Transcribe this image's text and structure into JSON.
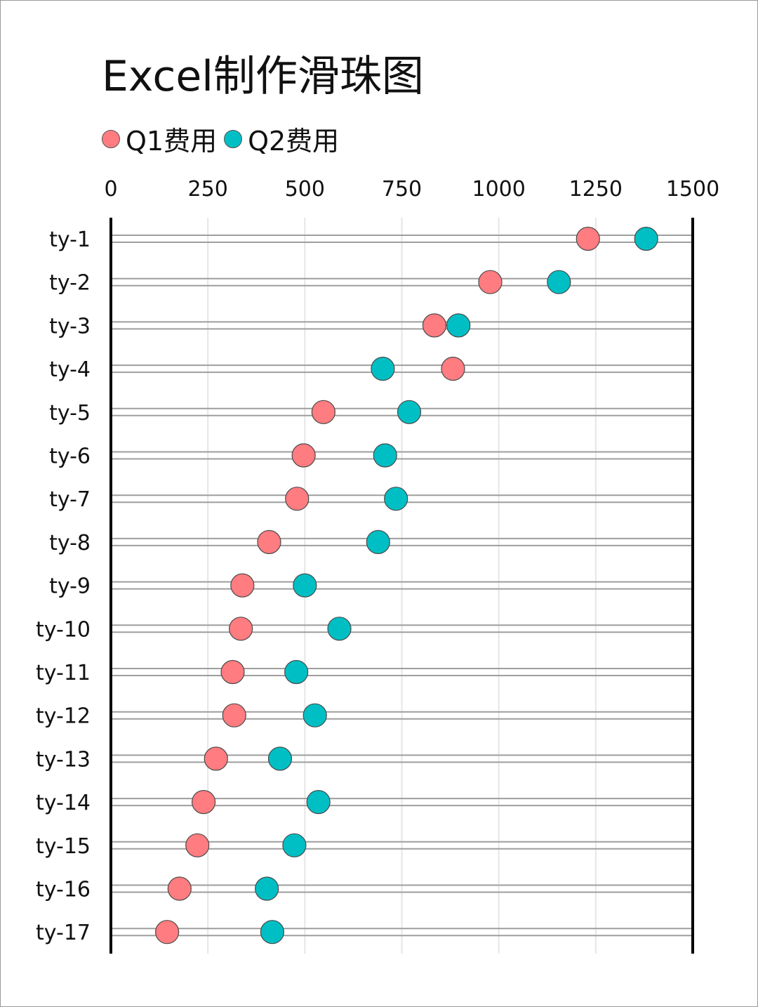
{
  "title": "Excel制作滑珠图",
  "legend": [
    {
      "label": "Q1费用",
      "color": "#ff7c80"
    },
    {
      "label": "Q2费用",
      "color": "#00bfc4"
    }
  ],
  "chart_data": {
    "type": "scatter",
    "xlim": [
      0,
      1500
    ],
    "x_ticks": [
      "0",
      "250",
      "500",
      "750",
      "1000",
      "1250",
      "1500"
    ],
    "x_tick_values": [
      0,
      250,
      500,
      750,
      1000,
      1250,
      1500
    ],
    "categories": [
      "ty-1",
      "ty-2",
      "ty-3",
      "ty-4",
      "ty-5",
      "ty-6",
      "ty-7",
      "ty-8",
      "ty-9",
      "ty-10",
      "ty-11",
      "ty-12",
      "ty-13",
      "ty-14",
      "ty-15",
      "ty-16",
      "ty-17"
    ],
    "series": [
      {
        "name": "Q1费用",
        "color": "#ff7c80",
        "values": [
          1230,
          978,
          834,
          882,
          548,
          497,
          480,
          408,
          339,
          335,
          314,
          318,
          271,
          239,
          223,
          177,
          145
        ]
      },
      {
        "name": "Q2费用",
        "color": "#00bfc4",
        "values": [
          1380,
          1155,
          896,
          701,
          769,
          707,
          735,
          689,
          500,
          589,
          478,
          526,
          436,
          535,
          473,
          402,
          416
        ]
      }
    ],
    "grid": true,
    "legend_position": "top-left"
  }
}
